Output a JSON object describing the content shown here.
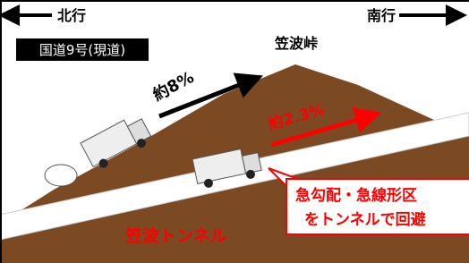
{
  "header": {
    "north": "北行",
    "south": "南行"
  },
  "route_label": "国道9号(現道)",
  "pass_name": "笠波峠",
  "old_grade": "約8%",
  "new_grade": "約2.3%",
  "tunnel_name": "笠波トンネル",
  "callout": {
    "line1": "急勾配・急線形区",
    "line2": "をトンネルで回避"
  }
}
